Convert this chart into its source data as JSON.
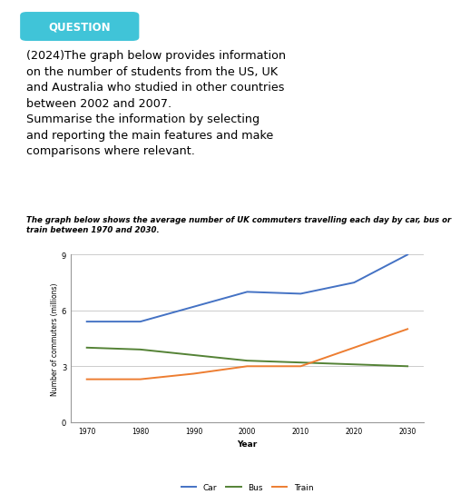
{
  "title_italic": "The graph below shows the average number of UK commuters travelling each day by car, bus or\ntrain between 1970 and 2030.",
  "question_label": "QUESTION",
  "question_text": "(2024)The graph below provides information\non the number of students from the US, UK\nand Australia who studied in other countries\nbetween 2002 and 2007.\nSummarise the information by selecting\nand reporting the main features and make\ncomparisons where relevant.",
  "years": [
    1970,
    1980,
    1990,
    2000,
    2010,
    2020,
    2030
  ],
  "car": [
    5.4,
    5.4,
    6.2,
    7.0,
    6.9,
    7.5,
    9.0
  ],
  "bus": [
    4.0,
    3.9,
    3.6,
    3.3,
    3.2,
    3.1,
    3.0
  ],
  "train": [
    2.3,
    2.3,
    2.6,
    3.0,
    3.0,
    4.0,
    5.0
  ],
  "car_color": "#4472C4",
  "bus_color": "#548235",
  "train_color": "#ED7D31",
  "ylabel": "Number of commuters (millions)",
  "xlabel": "Year",
  "ylim": [
    0,
    9
  ],
  "yticks": [
    0,
    3,
    6,
    9
  ],
  "grid_color": "#cccccc",
  "bg_color": "#ffffff",
  "question_bg": "#40C4D8",
  "question_text_color": "#ffffff",
  "body_text_color": "#000000"
}
